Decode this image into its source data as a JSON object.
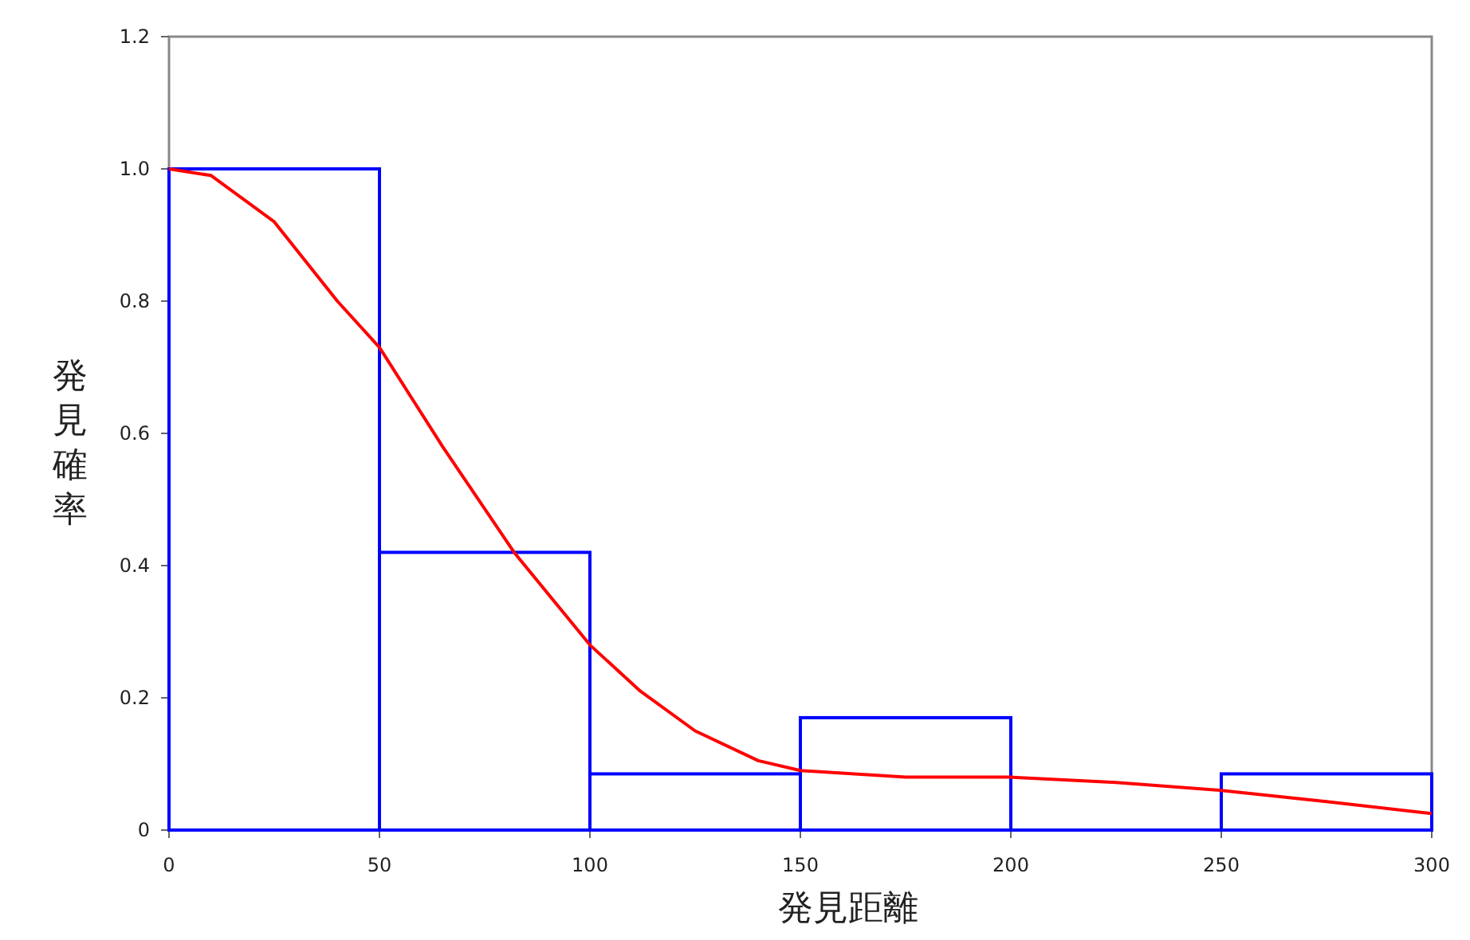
{
  "chart_data": {
    "type": "histogram",
    "xlabel": "発見距離",
    "ylabel": "発見確率",
    "xlim": [
      0,
      300
    ],
    "ylim": [
      0,
      1.2
    ],
    "xticks": [
      0,
      50,
      100,
      150,
      200,
      250,
      300
    ],
    "yticks": [
      0,
      0.2,
      0.4,
      0.6,
      0.8,
      {
        "value": 1,
        "label": "1.0"
      },
      1.2
    ],
    "grid": false,
    "series": [
      {
        "color": "#0000ff",
        "bins": [
          0,
          50,
          100,
          150,
          200,
          250,
          300
        ],
        "values": [
          1.0,
          0.42,
          0.085,
          0.17,
          0,
          0.085
        ]
      },
      {
        "type": "line",
        "color": "#ff0000",
        "x": [
          0,
          10,
          25,
          40,
          50,
          65,
          82,
          100,
          112,
          125,
          140,
          150,
          175,
          200,
          225,
          250,
          275,
          300
        ],
        "values": [
          1.0,
          0.99,
          0.92,
          0.8,
          0.73,
          0.58,
          0.42,
          0.28,
          0.21,
          0.15,
          0.105,
          0.09,
          0.08,
          0.08,
          0.072,
          0.06,
          0.043,
          0.025
        ]
      }
    ]
  }
}
